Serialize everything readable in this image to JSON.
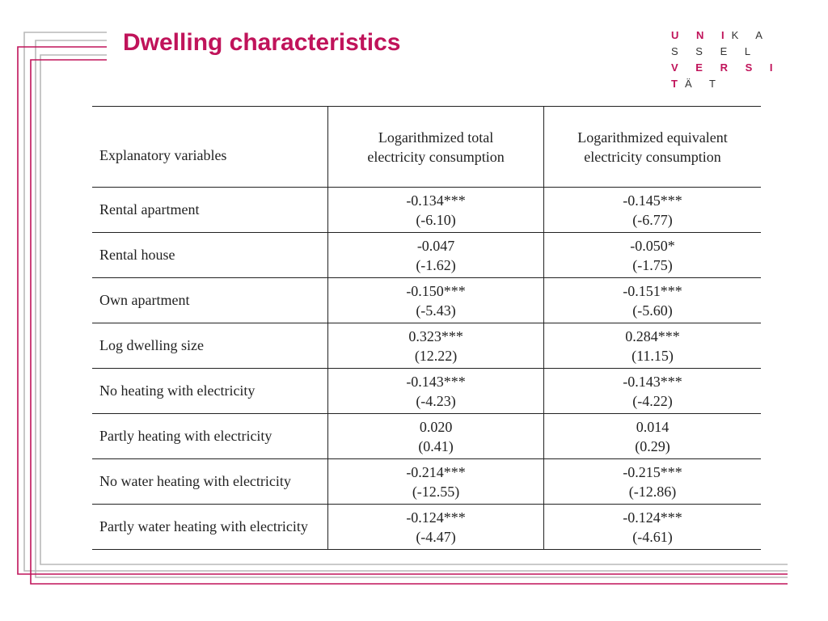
{
  "slide": {
    "title": "Dwelling characteristics",
    "logo": {
      "line1_pink": "U N I",
      "line1_dark": "K A S S E L",
      "line2_pink": "V E R S I T",
      "line2_dark": "Ä T"
    }
  },
  "table": {
    "headers": {
      "col1": "Explanatory variables",
      "col2_line1": "Logarithmized total",
      "col2_line2": "electricity consumption",
      "col3_line1": "Logarithmized equivalent",
      "col3_line2": "electricity consumption"
    },
    "rows": [
      {
        "label": "Rental apartment",
        "total_coef": "-0.134***",
        "total_t": "(-6.10)",
        "equiv_coef": "-0.145***",
        "equiv_t": "(-6.77)"
      },
      {
        "label": "Rental house",
        "total_coef": "-0.047",
        "total_t": "(-1.62)",
        "equiv_coef": "-0.050*",
        "equiv_t": "(-1.75)"
      },
      {
        "label": "Own apartment",
        "total_coef": "-0.150***",
        "total_t": "(-5.43)",
        "equiv_coef": "-0.151***",
        "equiv_t": "(-5.60)"
      },
      {
        "label": "Log dwelling size",
        "total_coef": "0.323***",
        "total_t": "(12.22)",
        "equiv_coef": "0.284***",
        "equiv_t": "(11.15)"
      },
      {
        "label": "No heating with electricity",
        "total_coef": "-0.143***",
        "total_t": "(-4.23)",
        "equiv_coef": "-0.143***",
        "equiv_t": "(-4.22)"
      },
      {
        "label": "Partly heating with electricity",
        "total_coef": "0.020",
        "total_t": "(0.41)",
        "equiv_coef": "0.014",
        "equiv_t": "(0.29)"
      },
      {
        "label": "No water heating with electricity",
        "total_coef": "-0.214***",
        "total_t": "(-12.55)",
        "equiv_coef": "-0.215***",
        "equiv_t": "(-12.86)"
      },
      {
        "label": "Partly water heating with electricity",
        "total_coef": "-0.124***",
        "total_t": "(-4.47)",
        "equiv_coef": "-0.124***",
        "equiv_t": "(-4.61)"
      }
    ]
  },
  "colors": {
    "accent": "#c0135a",
    "frame_gray": "#b9b9b9"
  }
}
